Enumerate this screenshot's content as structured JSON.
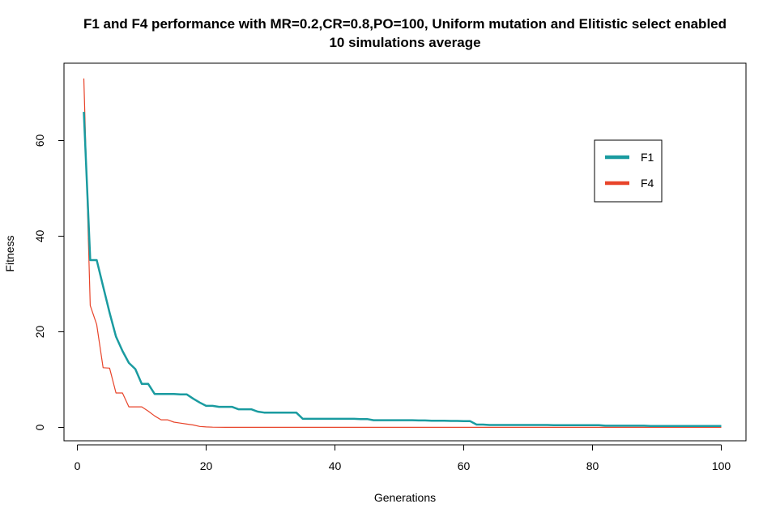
{
  "chart_data": {
    "type": "line",
    "title": "F1 and F4 performance with MR=0.2,CR=0.8,PO=100, Uniform mutation and Elitistic select enabled",
    "subtitle": "10 simulations average",
    "xlabel": "Generations",
    "ylabel": "Fitness",
    "xlim": [
      1,
      100
    ],
    "ylim": [
      0,
      73
    ],
    "xticks": [
      0,
      20,
      40,
      60,
      80,
      100
    ],
    "yticks": [
      0,
      20,
      40,
      60
    ],
    "grid": false,
    "legend_position": "top-right",
    "series": [
      {
        "name": "F1",
        "color": "#1a9ba0",
        "x": [
          1,
          2,
          3,
          4,
          5,
          6,
          7,
          8,
          9,
          10,
          11,
          12,
          13,
          14,
          15,
          16,
          17,
          18,
          19,
          20,
          21,
          22,
          23,
          24,
          25,
          26,
          27,
          28,
          29,
          30,
          31,
          32,
          33,
          34,
          35,
          36,
          37,
          38,
          39,
          40,
          41,
          42,
          43,
          44,
          45,
          46,
          47,
          48,
          49,
          50,
          51,
          52,
          53,
          54,
          55,
          56,
          57,
          58,
          59,
          60,
          61,
          62,
          63,
          64,
          65,
          66,
          67,
          68,
          69,
          70,
          71,
          72,
          73,
          74,
          75,
          76,
          77,
          78,
          79,
          80,
          81,
          82,
          83,
          84,
          85,
          86,
          87,
          88,
          89,
          90,
          91,
          92,
          93,
          94,
          95,
          96,
          97,
          98,
          99,
          100
        ],
        "values": [
          66,
          35,
          35,
          29.5,
          24,
          19,
          16,
          13.5,
          12.2,
          9.1,
          9.1,
          7,
          7,
          7,
          7,
          6.9,
          6.9,
          6,
          5.2,
          4.5,
          4.5,
          4.3,
          4.3,
          4.3,
          3.8,
          3.8,
          3.8,
          3.3,
          3.1,
          3.1,
          3.1,
          3.1,
          3.1,
          3.1,
          1.8,
          1.8,
          1.8,
          1.8,
          1.8,
          1.8,
          1.8,
          1.8,
          1.8,
          1.75,
          1.75,
          1.5,
          1.5,
          1.5,
          1.5,
          1.5,
          1.5,
          1.5,
          1.45,
          1.45,
          1.4,
          1.4,
          1.4,
          1.35,
          1.35,
          1.3,
          1.3,
          0.6,
          0.6,
          0.5,
          0.5,
          0.5,
          0.5,
          0.5,
          0.5,
          0.5,
          0.5,
          0.5,
          0.5,
          0.45,
          0.45,
          0.45,
          0.45,
          0.45,
          0.45,
          0.45,
          0.45,
          0.35,
          0.35,
          0.35,
          0.35,
          0.35,
          0.35,
          0.35,
          0.3,
          0.3,
          0.3,
          0.3,
          0.3,
          0.3,
          0.3,
          0.3,
          0.3,
          0.3,
          0.3,
          0.3
        ]
      },
      {
        "name": "F4",
        "color": "#e8442a",
        "x": [
          1,
          2,
          3,
          4,
          5,
          6,
          7,
          8,
          9,
          10,
          11,
          12,
          13,
          14,
          15,
          16,
          17,
          18,
          19,
          20,
          21,
          22,
          23,
          24,
          25,
          26,
          27,
          28,
          29,
          30,
          31,
          32,
          33,
          34,
          35,
          36,
          37,
          38,
          39,
          40,
          41,
          42,
          43,
          44,
          45,
          46,
          47,
          48,
          49,
          50,
          51,
          52,
          53,
          54,
          55,
          56,
          57,
          58,
          59,
          60,
          61,
          62,
          63,
          64,
          65,
          66,
          67,
          68,
          69,
          70,
          71,
          72,
          73,
          74,
          75,
          76,
          77,
          78,
          79,
          80,
          81,
          82,
          83,
          84,
          85,
          86,
          87,
          88,
          89,
          90,
          91,
          92,
          93,
          94,
          95,
          96,
          97,
          98,
          99,
          100
        ],
        "values": [
          73,
          25.5,
          21.5,
          12.5,
          12.4,
          7.2,
          7.2,
          4.3,
          4.3,
          4.3,
          3.4,
          2.4,
          1.6,
          1.6,
          1.1,
          0.9,
          0.7,
          0.5,
          0.2,
          0.1,
          0.05,
          0.03,
          0.02,
          0.02,
          0.02,
          0.02,
          0.02,
          0.02,
          0.02,
          0.02,
          0.02,
          0.02,
          0.02,
          0.02,
          0.02,
          0.02,
          0.02,
          0.02,
          0.02,
          0.02,
          0.02,
          0.02,
          0.02,
          0.02,
          0.02,
          0.02,
          0.02,
          0.02,
          0.02,
          0.02,
          0.02,
          0.02,
          0.02,
          0.02,
          0.02,
          0.02,
          0.02,
          0.02,
          0.02,
          0.02,
          0.02,
          0.02,
          0.02,
          0.02,
          0.02,
          0.02,
          0.02,
          0.02,
          0.02,
          0.02,
          0.02,
          0.02,
          0.02,
          0.02,
          0.02,
          0.02,
          0.02,
          0.02,
          0.02,
          0.02,
          0.02,
          0.02,
          0.02,
          0.02,
          0.02,
          0.02,
          0.02,
          0.02,
          0.02,
          0.02,
          0.02,
          0.02,
          0.02,
          0.02,
          0.02,
          0.02,
          0.02,
          0.02,
          0.02,
          0.02
        ]
      }
    ]
  }
}
